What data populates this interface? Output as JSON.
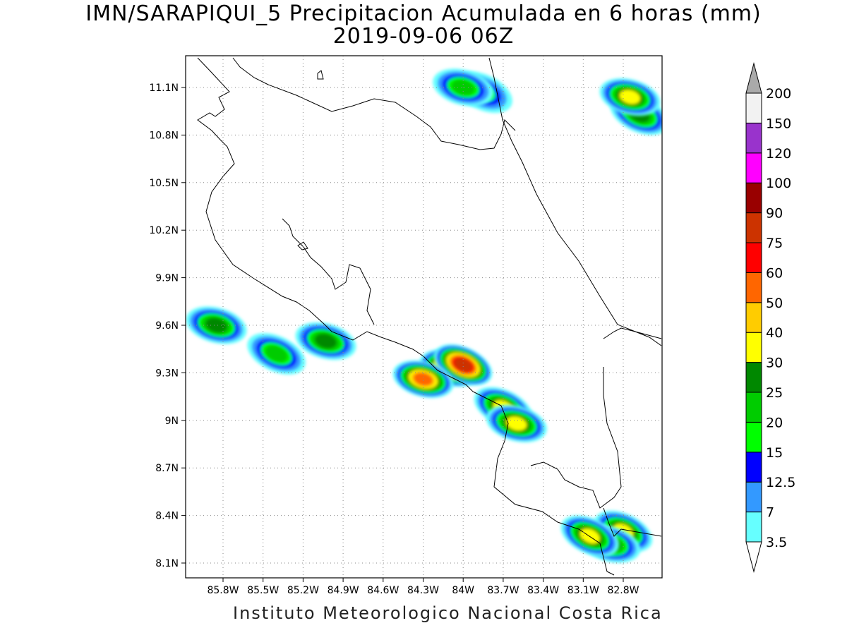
{
  "title": "IMN/SARAPIQUI_5 Precipitacion Acumulada en 6 horas (mm)",
  "subtitle": "2019-09-06 06Z",
  "footer": "Instituto Meteorologico Nacional Costa Rica",
  "lat_labels": [
    "11.1N",
    "10.8N",
    "10.5N",
    "10.2N",
    "9.9N",
    "9.6N",
    "9.3N",
    "9N",
    "8.7N",
    "8.4N",
    "8.1N"
  ],
  "lon_labels": [
    "85.8W",
    "85.5W",
    "85.2W",
    "84.9W",
    "84.6W",
    "84.3W",
    "84W",
    "83.7W",
    "83.4W",
    "83.1W",
    "82.8W"
  ],
  "legend": {
    "levels": [
      {
        "label": "3.5",
        "color": "#ffffff"
      },
      {
        "label": "7",
        "color": "#66ffff"
      },
      {
        "label": "12.5",
        "color": "#3399ff"
      },
      {
        "label": "15",
        "color": "#0000ff"
      },
      {
        "label": "20",
        "color": "#00ff00"
      },
      {
        "label": "25",
        "color": "#00cc00"
      },
      {
        "label": "30",
        "color": "#008800"
      },
      {
        "label": "40",
        "color": "#ffff00"
      },
      {
        "label": "50",
        "color": "#ffcc00"
      },
      {
        "label": "60",
        "color": "#ff6600"
      },
      {
        "label": "75",
        "color": "#ff0000"
      },
      {
        "label": "90",
        "color": "#cc3300"
      },
      {
        "label": "100",
        "color": "#990000"
      },
      {
        "label": "120",
        "color": "#ff00ff"
      },
      {
        "label": "150",
        "color": "#9933cc"
      },
      {
        "label": "200",
        "color": "#f2f2f2"
      }
    ],
    "top_cap_color": "#aaaaaa",
    "bottom_cap_color": "#ffffff"
  },
  "precip_cells": [
    {
      "lon": -84.1,
      "lat": 9.33,
      "max": 75
    },
    {
      "lon": -84.0,
      "lat": 9.35,
      "max": 90
    },
    {
      "lon": -84.3,
      "lat": 9.26,
      "max": 60
    },
    {
      "lon": -83.7,
      "lat": 9.08,
      "max": 40
    },
    {
      "lon": -83.6,
      "lat": 8.98,
      "max": 40
    },
    {
      "lon": -82.8,
      "lat": 8.3,
      "max": 40
    },
    {
      "lon": -82.9,
      "lat": 8.22,
      "max": 30
    },
    {
      "lon": -83.05,
      "lat": 8.27,
      "max": 40
    },
    {
      "lon": -85.85,
      "lat": 9.6,
      "max": 30
    },
    {
      "lon": -85.4,
      "lat": 9.42,
      "max": 25
    },
    {
      "lon": -85.03,
      "lat": 9.5,
      "max": 30
    },
    {
      "lon": -82.68,
      "lat": 10.93,
      "max": 30
    },
    {
      "lon": -82.75,
      "lat": 11.04,
      "max": 40
    },
    {
      "lon": -83.85,
      "lat": 11.07,
      "max": 20
    },
    {
      "lon": -84.0,
      "lat": 11.1,
      "max": 25
    }
  ]
}
